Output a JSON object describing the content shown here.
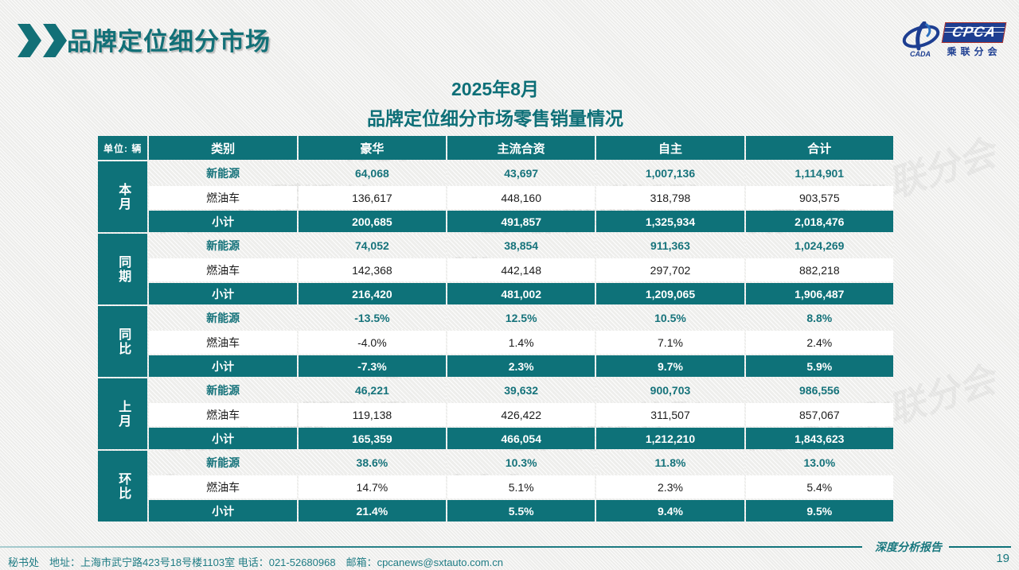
{
  "header": {
    "title": "品牌定位细分市场"
  },
  "logo": {
    "org_abbr": "CPCA",
    "org_name": "乘联分会",
    "emblem_text": "CADA"
  },
  "table_title": {
    "line1": "2025年8月",
    "line2": "品牌定位细分市场零售销量情况"
  },
  "table": {
    "unit_label": "单位: 辆",
    "columns": [
      "类别",
      "豪华",
      "主流合资",
      "自主",
      "合计"
    ],
    "blocks": [
      {
        "label": "本月",
        "rows": [
          {
            "type": "new_energy",
            "label": "新能源",
            "values": [
              "64,068",
              "43,697",
              "1,007,136",
              "1,114,901"
            ]
          },
          {
            "type": "fuel",
            "label": "燃油车",
            "values": [
              "136,617",
              "448,160",
              "318,798",
              "903,575"
            ]
          },
          {
            "type": "sub",
            "label": "小计",
            "values": [
              "200,685",
              "491,857",
              "1,325,934",
              "2,018,476"
            ]
          }
        ]
      },
      {
        "label": "同期",
        "rows": [
          {
            "type": "new_energy",
            "label": "新能源",
            "values": [
              "74,052",
              "38,854",
              "911,363",
              "1,024,269"
            ]
          },
          {
            "type": "fuel",
            "label": "燃油车",
            "values": [
              "142,368",
              "442,148",
              "297,702",
              "882,218"
            ]
          },
          {
            "type": "sub",
            "label": "小计",
            "values": [
              "216,420",
              "481,002",
              "1,209,065",
              "1,906,487"
            ]
          }
        ]
      },
      {
        "label": "同比",
        "rows": [
          {
            "type": "new_energy",
            "label": "新能源",
            "values": [
              "-13.5%",
              "12.5%",
              "10.5%",
              "8.8%"
            ]
          },
          {
            "type": "fuel",
            "label": "燃油车",
            "values": [
              "-4.0%",
              "1.4%",
              "7.1%",
              "2.4%"
            ]
          },
          {
            "type": "sub",
            "label": "小计",
            "values": [
              "-7.3%",
              "2.3%",
              "9.7%",
              "5.9%"
            ]
          }
        ]
      },
      {
        "label": "上月",
        "rows": [
          {
            "type": "new_energy",
            "label": "新能源",
            "values": [
              "46,221",
              "39,632",
              "900,703",
              "986,556"
            ]
          },
          {
            "type": "fuel",
            "label": "燃油车",
            "values": [
              "119,138",
              "426,422",
              "311,507",
              "857,067"
            ]
          },
          {
            "type": "sub",
            "label": "小计",
            "values": [
              "165,359",
              "466,054",
              "1,212,210",
              "1,843,623"
            ]
          }
        ]
      },
      {
        "label": "环比",
        "rows": [
          {
            "type": "new_energy",
            "label": "新能源",
            "values": [
              "38.6%",
              "10.3%",
              "11.8%",
              "13.0%"
            ]
          },
          {
            "type": "fuel",
            "label": "燃油车",
            "values": [
              "14.7%",
              "5.1%",
              "2.3%",
              "5.4%"
            ]
          },
          {
            "type": "sub",
            "label": "小计",
            "values": [
              "21.4%",
              "5.5%",
              "9.4%",
              "9.5%"
            ]
          }
        ]
      }
    ]
  },
  "watermark": "CPCA 乘联分会",
  "footer": {
    "left": "秘书处　地址：上海市武宁路423号18号楼1103室 电话：021-52680968　邮箱：cpcanews@sxtauto.com.cn",
    "report_label": "深度分析报告",
    "page_number": "19"
  },
  "colors": {
    "accent_teal": "#0e7279",
    "logo_blue": "#1d3e91"
  }
}
